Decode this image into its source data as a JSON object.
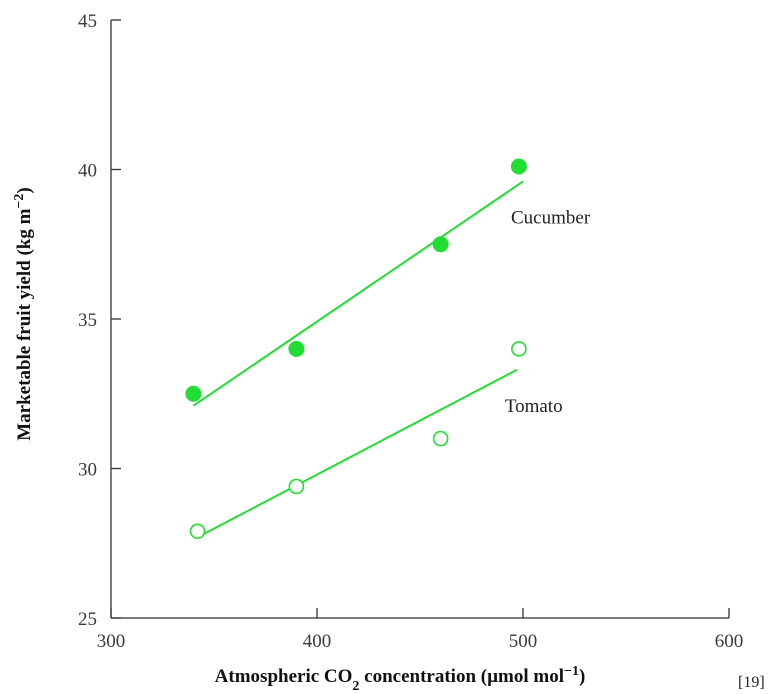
{
  "chart_data": {
    "type": "scatter",
    "xlabel_parts": [
      "Atmospheric CO",
      "2",
      " concentration (µmol mol",
      "−1",
      ")"
    ],
    "ylabel_parts": [
      "Marketable fruit yield (kg m",
      "−2",
      ")"
    ],
    "xlim": [
      300,
      600
    ],
    "ylim": [
      25,
      45
    ],
    "xticks": [
      300,
      400,
      500,
      600
    ],
    "yticks": [
      25,
      30,
      35,
      40,
      45
    ],
    "grid": false,
    "series": [
      {
        "name": "Cucumber",
        "marker": "filled-circle",
        "color": "#22dd33",
        "x": [
          340,
          390,
          460,
          498
        ],
        "y": [
          32.5,
          34.0,
          37.5,
          40.1
        ],
        "fit": {
          "x": [
            340,
            500
          ],
          "y": [
            32.1,
            39.6
          ]
        }
      },
      {
        "name": "Tomato",
        "marker": "open-circle",
        "color": "#22dd33",
        "x": [
          342,
          390,
          460,
          498
        ],
        "y": [
          27.9,
          29.4,
          31.0,
          34.0
        ],
        "fit": {
          "x": [
            342,
            497
          ],
          "y": [
            27.7,
            33.3
          ]
        }
      }
    ],
    "annotation": "[19]"
  }
}
